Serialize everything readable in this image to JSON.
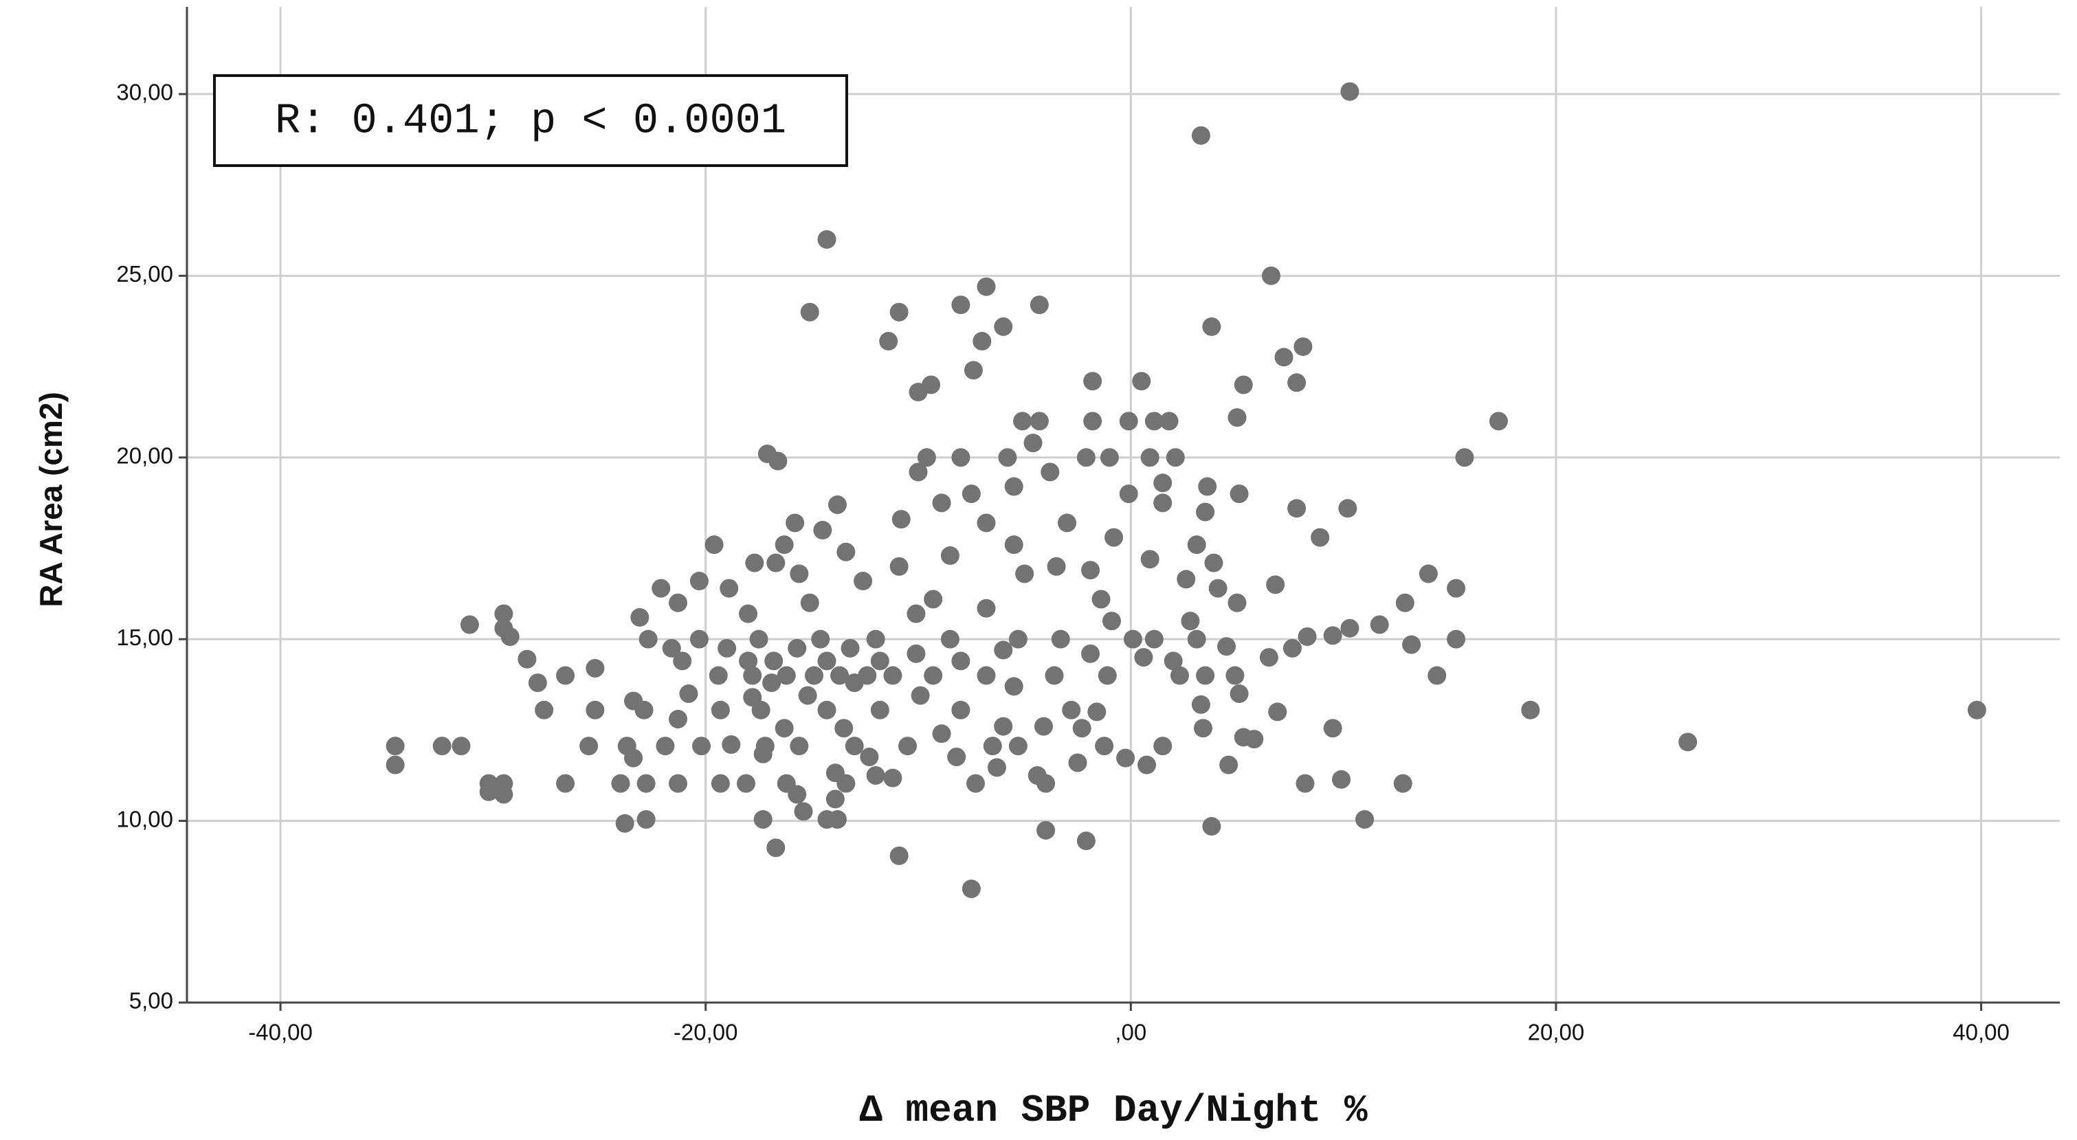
{
  "chart_data": {
    "type": "scatter",
    "annotation": "R: 0.401; p < 0.0001",
    "x_label": "Δ mean SBP Day/Night %",
    "y_label": "RA Area (cm2)",
    "color": "#737373",
    "grid": true,
    "xlim": [
      -44.4,
      43.7
    ],
    "ylim": [
      5,
      32.4
    ],
    "xticks": [
      {
        "value": -40,
        "label": "-40,00"
      },
      {
        "value": -20,
        "label": "-20,00"
      },
      {
        "value": 0,
        "label": ",00"
      },
      {
        "value": 20,
        "label": "20,00"
      },
      {
        "value": 40,
        "label": "40,00"
      }
    ],
    "yticks": [
      {
        "value": 5,
        "label": "5,00"
      },
      {
        "value": 10,
        "label": "10,00"
      },
      {
        "value": 15,
        "label": "15,00"
      },
      {
        "value": 20,
        "label": "20,00"
      },
      {
        "value": 25,
        "label": "25,00"
      },
      {
        "value": 30,
        "label": "30,00"
      }
    ],
    "x": [
      10.3,
      3.3,
      -14.3,
      6.6,
      -6.8,
      -15.1,
      -10.9,
      -8.0,
      -4.3,
      3.8,
      -6.0,
      -7.0,
      -11.4,
      8.1,
      7.2,
      -7.4,
      -9.4,
      -10.0,
      -1.8,
      0.5,
      5.3,
      7.8,
      17.3,
      5.0,
      -5.1,
      -4.3,
      -1.8,
      -0.1,
      1.1,
      1.8,
      15.7,
      -17.1,
      -16.6,
      -9.6,
      -8.0,
      -5.8,
      -2.1,
      -1.0,
      0.9,
      2.1,
      -4.6,
      -10.0,
      -3.8,
      3.6,
      1.5,
      5.1,
      -0.1,
      -7.5,
      -5.5,
      1.5,
      -8.9,
      -13.8,
      -15.8,
      7.8,
      10.2,
      3.5,
      -6.8,
      -3.0,
      -10.8,
      -14.5,
      8.9,
      -0.8,
      -16.3,
      -19.6,
      3.1,
      -5.5,
      -8.5,
      -13.4,
      0.9,
      -17.7,
      -16.7,
      -10.9,
      -3.5,
      -1.9,
      3.9,
      14.0,
      -15.6,
      -5.0,
      2.6,
      -20.3,
      6.8,
      15.3,
      -22.1,
      -18.9,
      -12.6,
      4.1,
      -9.3,
      -1.4,
      5.0,
      12.9,
      -21.3,
      -15.1,
      -6.8,
      -23.1,
      -29.5,
      -18.0,
      -10.1,
      -31.1,
      -29.5,
      -0.9,
      2.8,
      11.7,
      10.3,
      9.5,
      -29.2,
      -22.7,
      -20.3,
      -17.5,
      -14.6,
      -12.0,
      -8.5,
      -5.3,
      -3.3,
      0.1,
      1.1,
      3.1,
      15.3,
      8.3,
      13.2,
      4.5,
      7.6,
      -21.6,
      -19.0,
      -15.7,
      -13.2,
      -10.1,
      -6.0,
      -1.9,
      -28.4,
      -25.2,
      6.5,
      0.6,
      -21.1,
      -18.0,
      -16.8,
      -14.3,
      -11.8,
      -8.0,
      2.0,
      14.4,
      -26.6,
      -19.4,
      -17.8,
      -16.2,
      -14.9,
      -13.7,
      -12.4,
      -11.2,
      -9.3,
      -6.8,
      -3.6,
      -1.1,
      2.3,
      3.5,
      4.9,
      -27.9,
      -16.9,
      -13.0,
      -5.5,
      5.1,
      -20.8,
      -23.4,
      -17.8,
      -15.2,
      -9.9,
      6.9,
      18.8,
      39.8,
      -27.6,
      -25.2,
      -22.9,
      -19.3,
      -17.4,
      -14.3,
      -11.8,
      -8.0,
      -2.8,
      3.3,
      -1.6,
      -21.3,
      -6.0,
      -4.1,
      3.4,
      9.5,
      -16.3,
      -13.5,
      -2.3,
      5.3,
      5.8,
      26.2,
      -34.6,
      -32.4,
      -31.5,
      -25.5,
      -23.7,
      -21.9,
      -20.2,
      -18.8,
      -17.2,
      -15.6,
      -13.0,
      -10.5,
      -8.9,
      -6.5,
      -5.3,
      1.5,
      -1.25,
      -23.4,
      -34.6,
      -17.3,
      -12.3,
      -8.2,
      0.75,
      -0.25,
      4.6,
      -2.5,
      -6.3,
      -13.9,
      -4.4,
      -12.0,
      -11.2,
      -30.2,
      -29.5,
      -26.6,
      -24.0,
      -22.8,
      -21.3,
      -19.3,
      -18.1,
      -16.2,
      -13.4,
      -7.3,
      -4.0,
      8.2,
      9.9,
      12.8,
      -30.2,
      -29.5,
      -15.7,
      -13.9,
      -15.4,
      -22.8,
      -23.8,
      -17.3,
      -14.3,
      -13.8,
      11.0,
      3.8,
      -4.0,
      -2.1,
      -16.7,
      -10.9,
      -7.5
    ],
    "values": [
      30.07,
      28.86,
      26.0,
      25.0,
      24.7,
      24.0,
      24.0,
      24.2,
      24.2,
      23.6,
      23.6,
      23.2,
      23.2,
      23.05,
      22.76,
      22.4,
      22.0,
      21.8,
      22.1,
      22.1,
      22.0,
      22.06,
      21.0,
      21.1,
      21.0,
      21.0,
      21.0,
      21.0,
      21.0,
      21.0,
      20.0,
      20.1,
      19.9,
      20.0,
      20.0,
      20.0,
      20.0,
      20.0,
      20.0,
      20.0,
      20.4,
      19.6,
      19.6,
      19.2,
      19.3,
      19.0,
      19.0,
      19.0,
      19.2,
      18.75,
      18.75,
      18.7,
      18.2,
      18.6,
      18.6,
      18.5,
      18.2,
      18.2,
      18.3,
      18.0,
      17.8,
      17.8,
      17.6,
      17.6,
      17.6,
      17.6,
      17.3,
      17.4,
      17.2,
      17.1,
      17.1,
      17.0,
      17.0,
      16.9,
      17.1,
      16.8,
      16.8,
      16.8,
      16.65,
      16.6,
      16.5,
      16.4,
      16.4,
      16.4,
      16.6,
      16.4,
      16.1,
      16.1,
      16.0,
      16.0,
      16.0,
      16.0,
      15.85,
      15.6,
      15.7,
      15.7,
      15.7,
      15.4,
      15.3,
      15.5,
      15.5,
      15.4,
      15.3,
      15.1,
      15.07,
      15.0,
      15.0,
      15.0,
      15.0,
      15.0,
      15.0,
      15.0,
      15.0,
      15.0,
      15.0,
      15.0,
      15.0,
      15.07,
      14.85,
      14.8,
      14.75,
      14.75,
      14.75,
      14.75,
      14.75,
      14.6,
      14.7,
      14.6,
      14.45,
      14.2,
      14.5,
      14.5,
      14.4,
      14.4,
      14.4,
      14.4,
      14.4,
      14.4,
      14.4,
      14.0,
      14.0,
      14.0,
      14.0,
      14.0,
      14.0,
      14.0,
      14.0,
      14.0,
      14.0,
      14.0,
      14.0,
      14.0,
      14.0,
      14.0,
      14.0,
      13.8,
      13.8,
      13.8,
      13.7,
      13.5,
      13.5,
      13.3,
      13.4,
      13.45,
      13.45,
      13.0,
      13.05,
      13.05,
      13.05,
      13.05,
      13.05,
      13.05,
      13.05,
      13.05,
      13.05,
      13.05,
      13.05,
      13.2,
      13.0,
      12.8,
      12.6,
      12.6,
      12.55,
      12.55,
      12.55,
      12.55,
      12.55,
      12.3,
      12.25,
      12.17,
      12.06,
      12.06,
      12.06,
      12.06,
      12.06,
      12.06,
      12.06,
      12.1,
      12.06,
      12.06,
      12.06,
      12.06,
      12.4,
      12.06,
      12.06,
      12.06,
      12.06,
      11.73,
      11.54,
      11.84,
      11.76,
      11.76,
      11.54,
      11.73,
      11.54,
      11.6,
      11.47,
      11.32,
      11.25,
      11.25,
      11.18,
      11.03,
      11.03,
      11.03,
      11.03,
      11.03,
      11.03,
      11.03,
      11.03,
      11.03,
      11.03,
      11.03,
      11.03,
      11.03,
      11.14,
      11.03,
      10.8,
      10.73,
      10.73,
      10.6,
      10.26,
      10.04,
      9.93,
      10.04,
      10.04,
      10.04,
      10.04,
      9.85,
      9.74,
      9.45,
      9.26,
      9.04,
      8.13
    ]
  }
}
